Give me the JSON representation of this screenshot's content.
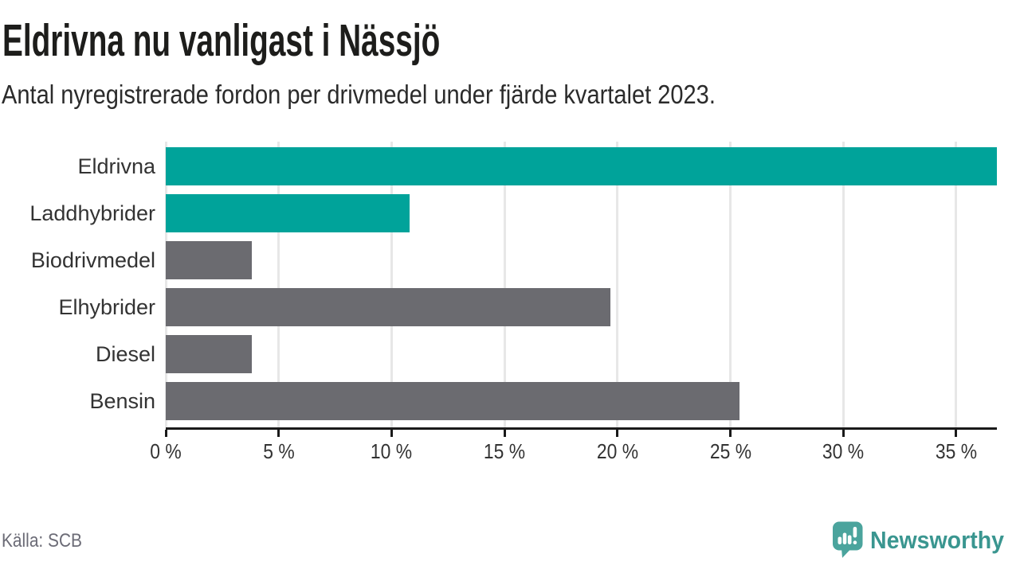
{
  "header": {
    "title": "Eldrivna nu vanligast i Nässjö",
    "subtitle": "Antal nyregistrerade fordon per drivmedel under fjärde kvartalet 2023."
  },
  "chart_data": {
    "type": "bar",
    "orientation": "horizontal",
    "title": "Eldrivna nu vanligast i Nässjö",
    "subtitle": "Antal nyregistrerade fordon per drivmedel under fjärde kvartalet 2023.",
    "categories": [
      "Eldrivna",
      "Laddhybrider",
      "Biodrivmedel",
      "Elhybrider",
      "Diesel",
      "Bensin"
    ],
    "values": [
      36.8,
      10.8,
      3.8,
      19.7,
      3.8,
      25.4
    ],
    "unit": "%",
    "bar_colors": [
      "#00a39a",
      "#00a39a",
      "#6b6b70",
      "#6b6b70",
      "#6b6b70",
      "#6b6b70"
    ],
    "x_ticks": [
      0,
      5,
      10,
      15,
      20,
      25,
      30,
      35
    ],
    "x_tick_labels": [
      "0 %",
      "5 %",
      "10 %",
      "15 %",
      "20 %",
      "25 %",
      "30 %",
      "35 %"
    ],
    "xlim": [
      0,
      36.8
    ],
    "grid": true,
    "legend": false
  },
  "footer": {
    "source": "Källa: SCB",
    "brand": "Newsworthy"
  },
  "colors": {
    "accent_teal": "#00a39a",
    "bar_gray": "#6b6b70",
    "logo_icon_teal": "#4ba49d",
    "brand_text_teal": "#3a9690",
    "axis": "#1a1a1a",
    "gridline": "#e7e7e7",
    "title_text": "#1d1d1b",
    "muted_text": "#6b6b76"
  }
}
